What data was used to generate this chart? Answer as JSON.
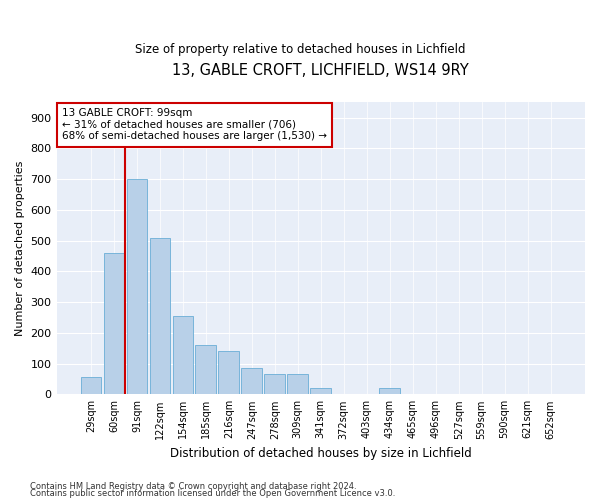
{
  "title1": "13, GABLE CROFT, LICHFIELD, WS14 9RY",
  "title2": "Size of property relative to detached houses in Lichfield",
  "xlabel": "Distribution of detached houses by size in Lichfield",
  "ylabel": "Number of detached properties",
  "categories": [
    "29sqm",
    "60sqm",
    "91sqm",
    "122sqm",
    "154sqm",
    "185sqm",
    "216sqm",
    "247sqm",
    "278sqm",
    "309sqm",
    "341sqm",
    "372sqm",
    "403sqm",
    "434sqm",
    "465sqm",
    "496sqm",
    "527sqm",
    "559sqm",
    "590sqm",
    "621sqm",
    "652sqm"
  ],
  "values": [
    55,
    460,
    700,
    510,
    255,
    160,
    140,
    85,
    65,
    65,
    20,
    0,
    0,
    20,
    0,
    0,
    0,
    0,
    0,
    0,
    0
  ],
  "bar_color": "#b8d0e8",
  "bar_edge_color": "#6aaed6",
  "bg_color": "#e8eef8",
  "vline_x": 1.5,
  "vline_color": "#cc0000",
  "annotation_text": "13 GABLE CROFT: 99sqm\n← 31% of detached houses are smaller (706)\n68% of semi-detached houses are larger (1,530) →",
  "annotation_box_color": "#cc0000",
  "footer1": "Contains HM Land Registry data © Crown copyright and database right 2024.",
  "footer2": "Contains public sector information licensed under the Open Government Licence v3.0.",
  "ylim": [
    0,
    950
  ],
  "yticks": [
    0,
    100,
    200,
    300,
    400,
    500,
    600,
    700,
    800,
    900
  ]
}
